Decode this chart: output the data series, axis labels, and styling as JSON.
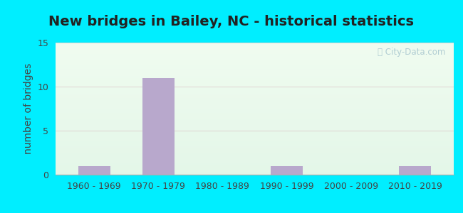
{
  "title": "New bridges in Bailey, NC - historical statistics",
  "categories": [
    "1960 - 1969",
    "1970 - 1979",
    "1980 - 1989",
    "1990 - 1999",
    "2000 - 2009",
    "2010 - 2019"
  ],
  "values": [
    1,
    11,
    0,
    1,
    0,
    1
  ],
  "bar_color": "#b8a8cc",
  "ylabel": "number of bridges",
  "ylim": [
    0,
    15
  ],
  "yticks": [
    0,
    5,
    10,
    15
  ],
  "grid_color": "#dddddd",
  "title_fontsize": 14,
  "axis_label_fontsize": 10,
  "tick_fontsize": 9,
  "outer_bg_color": "#00eeff",
  "watermark_text": "ⓘ City-Data.com",
  "watermark_color": "#aac8d0"
}
